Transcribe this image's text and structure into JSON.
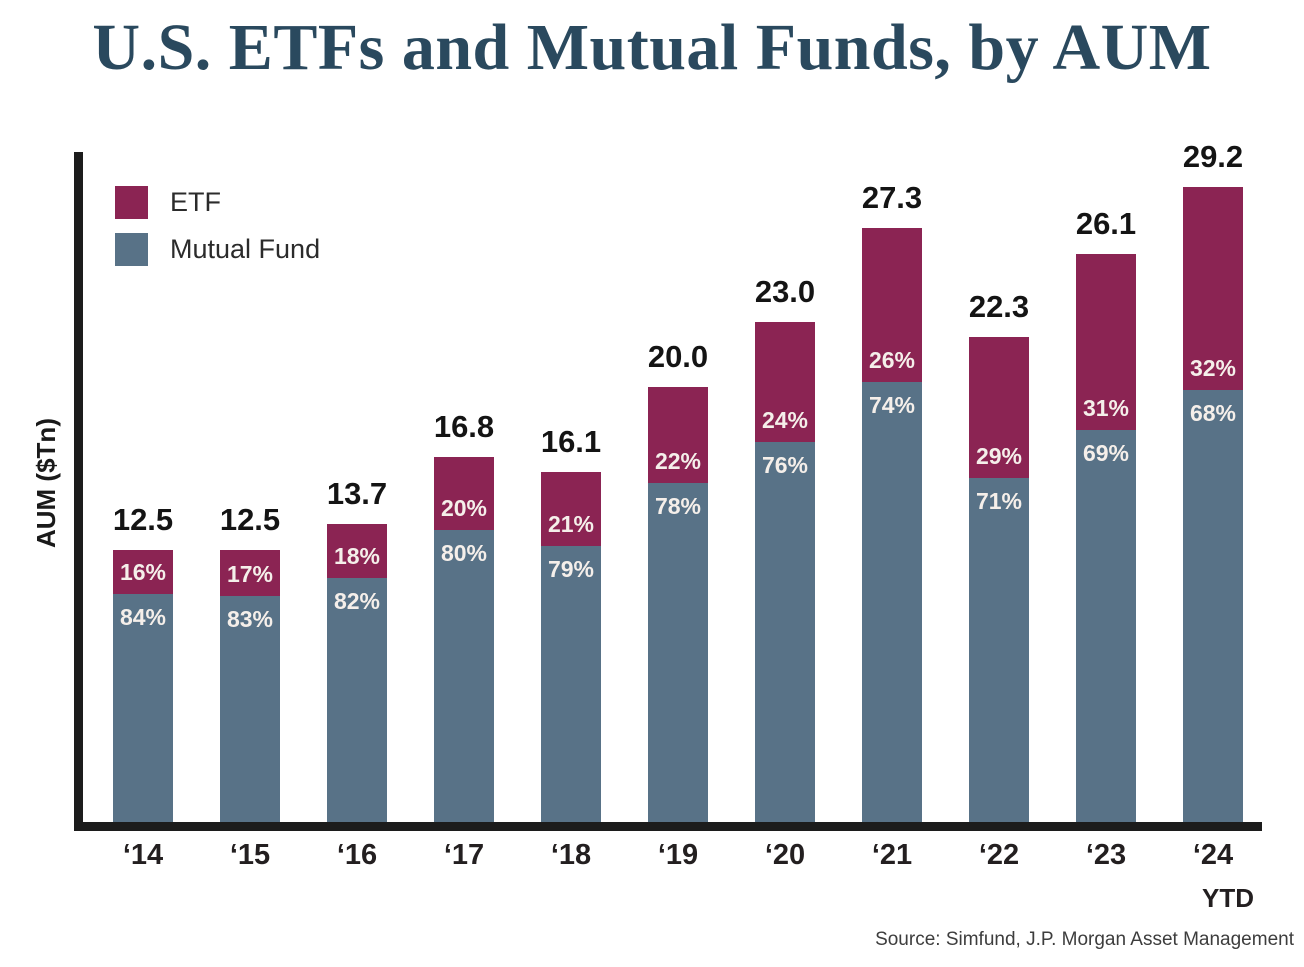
{
  "chart_data": {
    "type": "bar",
    "stacked": true,
    "title": "U.S. ETFs and Mutual Funds, by AUM",
    "ylabel": "AUM ($Tn)",
    "grid": false,
    "legend_position": "top-left",
    "ylim": [
      0,
      29.2
    ],
    "categories": [
      "‘14",
      "‘15",
      "‘16",
      "‘17",
      "‘18",
      "‘19",
      "‘20",
      "‘21",
      "‘22",
      "‘23",
      "‘24"
    ],
    "x_suffix_label": "YTD",
    "totals_tn": [
      "12.5",
      "12.5",
      "13.7",
      "16.8",
      "16.1",
      "20.0",
      "23.0",
      "27.3",
      "22.3",
      "26.1",
      "29.2"
    ],
    "series": [
      {
        "name": "ETF",
        "color": "#8B2453",
        "values_pct": [
          16,
          17,
          18,
          20,
          21,
          22,
          24,
          26,
          29,
          31,
          32
        ]
      },
      {
        "name": "Mutual Fund",
        "color": "#587287",
        "values_pct": [
          84,
          83,
          82,
          80,
          79,
          78,
          76,
          74,
          71,
          69,
          68
        ]
      }
    ],
    "source": "Source: Simfund, J.P. Morgan Asset Management",
    "colors": {
      "title": "#2A495E",
      "axis": "#1C1C1C",
      "bar_value_text": "#F5EFEA",
      "tick_text": "#231F20",
      "source_text": "#3D3D3D"
    }
  }
}
